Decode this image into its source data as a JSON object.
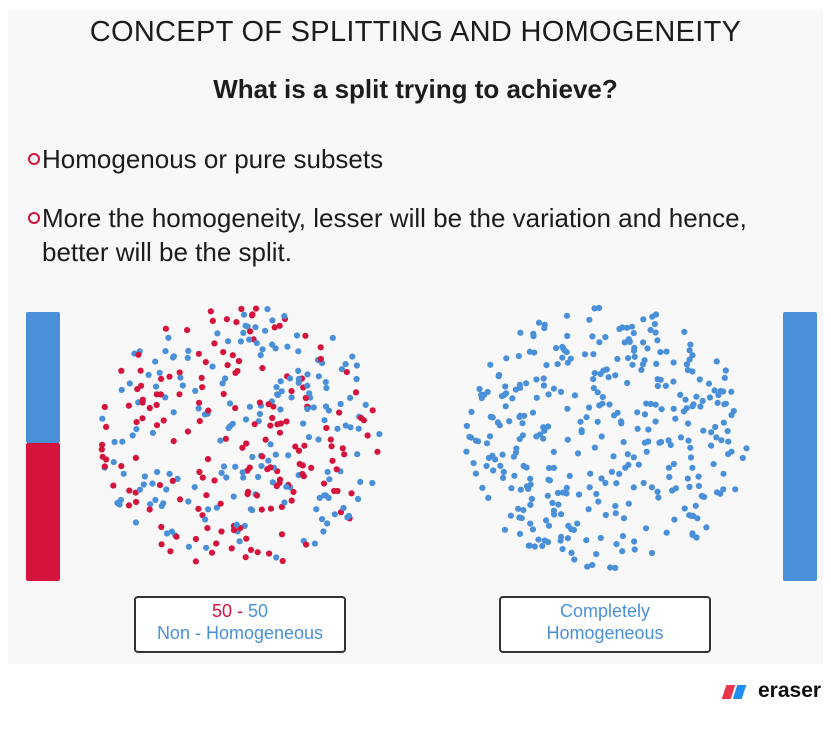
{
  "slide": {
    "title": "CONCEPT OF SPLITTING AND HOMOGENEITY",
    "subtitle": "What is a split trying to achieve?",
    "bullets": [
      "Homogenous or pure subsets",
      "More the homogeneity, lesser will be the variation and hence, better will be the split."
    ]
  },
  "left_panel": {
    "ratio_red": "50",
    "ratio_sep": " - ",
    "ratio_blue": "50",
    "label": "Non - Homogeneous",
    "red_fraction": 0.5
  },
  "right_panel": {
    "line1": "Completely",
    "line2": "Homogeneous",
    "red_fraction": 0
  },
  "colors": {
    "red": "#d4143c",
    "blue": "#4a90d9",
    "text": "#1c1c1c"
  },
  "watermark": {
    "text": "eraser"
  }
}
